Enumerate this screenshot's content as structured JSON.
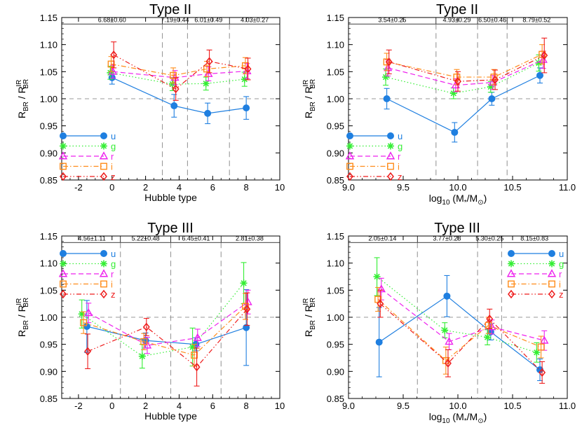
{
  "chart_data": [
    {
      "type": "scatter",
      "title": "Type II",
      "xlabel": "Hubble type",
      "ylabel_base": "R",
      "ylabel_sub": "BR",
      "ylabel_div": " / R",
      "ylabel_sup": "IR",
      "ylabel_sub2": "BR",
      "xlim": [
        -3,
        10
      ],
      "ylim": [
        0.85,
        1.15
      ],
      "xticks": [
        -2,
        0,
        2,
        4,
        6,
        8,
        10
      ],
      "xtick_labels": [
        "-2",
        "0",
        "2",
        "4",
        "6",
        "8",
        "10"
      ],
      "yticks": [
        0.85,
        0.9,
        0.95,
        1.0,
        1.05,
        1.1,
        1.15
      ],
      "ytick_labels": [
        "0.85",
        "0.90",
        "0.95",
        "1.00",
        "1.05",
        "1.10",
        "1.15"
      ],
      "reference_line": 1.0,
      "bin_edges": [
        3,
        4.5,
        7
      ],
      "bin_labels": [
        {
          "x": 0,
          "text": "6.68±0.60"
        },
        {
          "x": 3.75,
          "text": "7.19±0.44"
        },
        {
          "x": 5.75,
          "text": "6.01±0.49"
        },
        {
          "x": 8.5,
          "text": "4.03±0.27"
        }
      ],
      "legend_position": "bottom-left",
      "series": [
        {
          "name": "u",
          "color": "#1f7fe0",
          "marker": "filled-circle",
          "dash": "none",
          "x": [
            0,
            3.7,
            5.7,
            8
          ],
          "y": [
            1.039,
            0.987,
            0.973,
            0.983
          ],
          "err": [
            0.012,
            0.021,
            0.019,
            0.021
          ]
        },
        {
          "name": "g",
          "color": "#33ee33",
          "marker": "asterisk",
          "dash": "dot",
          "x": [
            -0.1,
            3.6,
            5.6,
            7.9
          ],
          "y": [
            1.048,
            1.027,
            1.028,
            1.036
          ],
          "err": [
            0.012,
            0.012,
            0.012,
            0.013
          ]
        },
        {
          "name": "r",
          "color": "#ee22ee",
          "marker": "triangle",
          "dash": "dash",
          "x": [
            0.05,
            3.75,
            5.75,
            8.05
          ],
          "y": [
            1.05,
            1.039,
            1.046,
            1.051
          ],
          "err": [
            0.012,
            0.013,
            0.013,
            0.014
          ]
        },
        {
          "name": "i",
          "color": "#ff8c1a",
          "marker": "square",
          "dash": "dashdot",
          "x": [
            -0.05,
            3.65,
            5.65,
            7.95
          ],
          "y": [
            1.064,
            1.043,
            1.055,
            1.061
          ],
          "err": [
            0.014,
            0.014,
            0.014,
            0.015
          ]
        },
        {
          "name": "z",
          "color": "#ee1c1c",
          "marker": "diamond",
          "dash": "dashdotdot",
          "x": [
            0.1,
            3.8,
            5.8,
            8.1
          ],
          "y": [
            1.081,
            1.018,
            1.069,
            1.055
          ],
          "err": [
            0.024,
            0.021,
            0.021,
            0.02
          ]
        }
      ]
    },
    {
      "type": "scatter",
      "title": "Type II",
      "xlabel_base": "log",
      "xlabel_sub": "10",
      "xlabel_rest": " (M",
      "xlabel_sub2": "*",
      "xlabel_rest2": "/M",
      "xlabel_sub3": "⊙",
      "xlabel_end": ")",
      "ylabel_base": "R",
      "ylabel_sub": "BR",
      "ylabel_div": " / R",
      "ylabel_sup": "IR",
      "ylabel_sub2": "BR",
      "xlim": [
        9.0,
        11.0
      ],
      "ylim": [
        0.85,
        1.15
      ],
      "xticks": [
        9.0,
        9.5,
        10.0,
        10.5,
        11.0
      ],
      "xtick_labels": [
        "9.0",
        "9.5",
        "10.0",
        "10.5",
        "11.0"
      ],
      "yticks": [
        0.85,
        0.9,
        0.95,
        1.0,
        1.05,
        1.1,
        1.15
      ],
      "ytick_labels": [
        "0.85",
        "0.90",
        "0.95",
        "1.00",
        "1.05",
        "1.10",
        "1.15"
      ],
      "reference_line": 1.0,
      "bin_edges": [
        9.8,
        10.18,
        10.45
      ],
      "bin_labels": [
        {
          "x": 9.4,
          "text": "3.54±0.25"
        },
        {
          "x": 9.99,
          "text": "4.93±0.29"
        },
        {
          "x": 10.315,
          "text": "6.50±0.46"
        },
        {
          "x": 10.72,
          "text": "8.79±0.52"
        }
      ],
      "legend_position": "bottom-left",
      "series": [
        {
          "name": "u",
          "color": "#1f7fe0",
          "marker": "filled-circle",
          "dash": "none",
          "x": [
            9.35,
            9.97,
            10.31,
            10.75
          ],
          "y": [
            1.0,
            0.938,
            1.0,
            1.043
          ],
          "err": [
            0.019,
            0.018,
            0.012,
            0.014
          ]
        },
        {
          "name": "g",
          "color": "#33ee33",
          "marker": "asterisk",
          "dash": "dot",
          "x": [
            9.34,
            9.96,
            10.3,
            10.74
          ],
          "y": [
            1.04,
            1.01,
            1.022,
            1.066
          ],
          "err": [
            0.015,
            0.01,
            0.01,
            0.015
          ]
        },
        {
          "name": "r",
          "color": "#ee22ee",
          "marker": "triangle",
          "dash": "dash",
          "x": [
            9.36,
            9.98,
            10.32,
            10.78
          ],
          "y": [
            1.057,
            1.025,
            1.03,
            1.072
          ],
          "err": [
            0.015,
            0.012,
            0.013,
            0.016
          ]
        },
        {
          "name": "i",
          "color": "#ff8c1a",
          "marker": "square",
          "dash": "dashdot",
          "x": [
            9.35,
            9.99,
            10.33,
            10.77
          ],
          "y": [
            1.068,
            1.04,
            1.04,
            1.082
          ],
          "err": [
            0.016,
            0.014,
            0.014,
            0.018
          ]
        },
        {
          "name": "z",
          "color": "#ee1c1c",
          "marker": "diamond",
          "dash": "dashdotdot",
          "x": [
            9.37,
            10.0,
            10.34,
            10.79
          ],
          "y": [
            1.068,
            1.032,
            1.035,
            1.08
          ],
          "err": [
            0.022,
            0.018,
            0.018,
            0.032
          ]
        }
      ]
    },
    {
      "type": "scatter",
      "title": "Type III",
      "xlabel": "Hubble type",
      "ylabel_base": "R",
      "ylabel_sub": "BR",
      "ylabel_div": " / R",
      "ylabel_sup": "IR",
      "ylabel_sub2": "BR",
      "xlim": [
        -3,
        10
      ],
      "ylim": [
        0.85,
        1.15
      ],
      "xticks": [
        -2,
        0,
        2,
        4,
        6,
        8,
        10
      ],
      "xtick_labels": [
        "-2",
        "0",
        "2",
        "4",
        "6",
        "8",
        "10"
      ],
      "yticks": [
        0.85,
        0.9,
        0.95,
        1.0,
        1.05,
        1.1,
        1.15
      ],
      "ytick_labels": [
        "0.85",
        "0.90",
        "0.95",
        "1.00",
        "1.05",
        "1.10",
        "1.15"
      ],
      "reference_line": 1.0,
      "bin_edges": [
        0.5,
        3.5,
        6.5
      ],
      "bin_labels": [
        {
          "x": -1.2,
          "text": "4.56±1.11"
        },
        {
          "x": 2.0,
          "text": "5.22±0.48"
        },
        {
          "x": 5.0,
          "text": "6.45±0.41"
        },
        {
          "x": 8.2,
          "text": "2.81±0.38"
        }
      ],
      "legend_position": "top-left",
      "series": [
        {
          "name": "u",
          "color": "#1f7fe0",
          "marker": "filled-circle",
          "dash": "none",
          "x": [
            -1.5,
            2,
            5,
            8
          ],
          "y": [
            0.983,
            0.957,
            0.95,
            0.981
          ],
          "err": [
            0.048,
            0.014,
            0.012,
            0.07
          ]
        },
        {
          "name": "g",
          "color": "#33ee33",
          "marker": "asterisk",
          "dash": "dot",
          "x": [
            -1.8,
            1.8,
            4.8,
            7.85
          ],
          "y": [
            1.006,
            0.928,
            0.945,
            1.063
          ],
          "err": [
            0.026,
            0.022,
            0.035,
            0.038
          ]
        },
        {
          "name": "r",
          "color": "#ee22ee",
          "marker": "triangle",
          "dash": "dash",
          "x": [
            -1.4,
            2.1,
            5.1,
            8.1
          ],
          "y": [
            1.008,
            0.948,
            0.962,
            1.028
          ],
          "err": [
            0.018,
            0.015,
            0.016,
            0.022
          ]
        },
        {
          "name": "i",
          "color": "#ff8c1a",
          "marker": "square",
          "dash": "dashdot",
          "x": [
            -1.7,
            1.9,
            4.9,
            7.95
          ],
          "y": [
            0.99,
            0.955,
            0.93,
            1.02
          ],
          "err": [
            0.02,
            0.015,
            0.02,
            0.024
          ]
        },
        {
          "name": "z",
          "color": "#ee1c1c",
          "marker": "diamond",
          "dash": "dashdotdot",
          "x": [
            -1.45,
            2.05,
            5.05,
            8.05
          ],
          "y": [
            0.937,
            0.982,
            0.908,
            1.015
          ],
          "err": [
            0.032,
            0.016,
            0.035,
            0.03
          ]
        }
      ]
    },
    {
      "type": "scatter",
      "title": "Type III",
      "xlabel_base": "log",
      "xlabel_sub": "10",
      "xlabel_rest": " (M",
      "xlabel_sub2": "*",
      "xlabel_rest2": "/M",
      "xlabel_sub3": "⊙",
      "xlabel_end": ")",
      "ylabel_base": "R",
      "ylabel_sub": "BR",
      "ylabel_div": " / R",
      "ylabel_sup": "IR",
      "ylabel_sub2": "BR",
      "xlim": [
        9.0,
        11.0
      ],
      "ylim": [
        0.85,
        1.15
      ],
      "xticks": [
        9.0,
        9.5,
        10.0,
        10.5,
        11.0
      ],
      "xtick_labels": [
        "9.0",
        "9.5",
        "10.0",
        "10.5",
        "11.0"
      ],
      "yticks": [
        0.85,
        0.9,
        0.95,
        1.0,
        1.05,
        1.1,
        1.15
      ],
      "ytick_labels": [
        "0.85",
        "0.90",
        "0.95",
        "1.00",
        "1.05",
        "1.10",
        "1.15"
      ],
      "reference_line": 1.0,
      "bin_edges": [
        9.63,
        10.18,
        10.4
      ],
      "bin_labels": [
        {
          "x": 9.31,
          "text": "2.05±0.14"
        },
        {
          "x": 9.9,
          "text": "3.77±0.28"
        },
        {
          "x": 10.29,
          "text": "5.30±0.25"
        },
        {
          "x": 10.7,
          "text": "8.15±0.83"
        }
      ],
      "legend_position": "top-right",
      "series": [
        {
          "name": "u",
          "color": "#1f7fe0",
          "marker": "filled-circle",
          "dash": "none",
          "x": [
            9.28,
            9.9,
            10.3,
            10.75
          ],
          "y": [
            0.954,
            1.039,
            0.973,
            0.903
          ],
          "err": [
            0.064,
            0.038,
            0.015,
            0.02
          ]
        },
        {
          "name": "g",
          "color": "#33ee33",
          "marker": "asterisk",
          "dash": "dot",
          "x": [
            9.26,
            9.88,
            10.27,
            10.72
          ],
          "y": [
            1.075,
            0.976,
            0.963,
            0.935
          ],
          "err": [
            0.035,
            0.014,
            0.014,
            0.018
          ]
        },
        {
          "name": "r",
          "color": "#ee22ee",
          "marker": "triangle",
          "dash": "dash",
          "x": [
            9.3,
            9.92,
            10.31,
            10.79
          ],
          "y": [
            1.052,
            0.955,
            0.982,
            0.957
          ],
          "err": [
            0.02,
            0.015,
            0.013,
            0.018
          ]
        },
        {
          "name": "i",
          "color": "#ff8c1a",
          "marker": "square",
          "dash": "dashdot",
          "x": [
            9.27,
            9.89,
            10.28,
            10.76
          ],
          "y": [
            1.033,
            0.92,
            0.985,
            0.945
          ],
          "err": [
            0.022,
            0.025,
            0.015,
            0.02
          ]
        },
        {
          "name": "z",
          "color": "#ee1c1c",
          "marker": "diamond",
          "dash": "dashdotdot",
          "x": [
            9.29,
            9.91,
            10.29,
            10.77
          ],
          "y": [
            1.025,
            0.915,
            0.997,
            0.898
          ],
          "err": [
            0.025,
            0.025,
            0.018,
            0.02
          ]
        }
      ]
    }
  ]
}
